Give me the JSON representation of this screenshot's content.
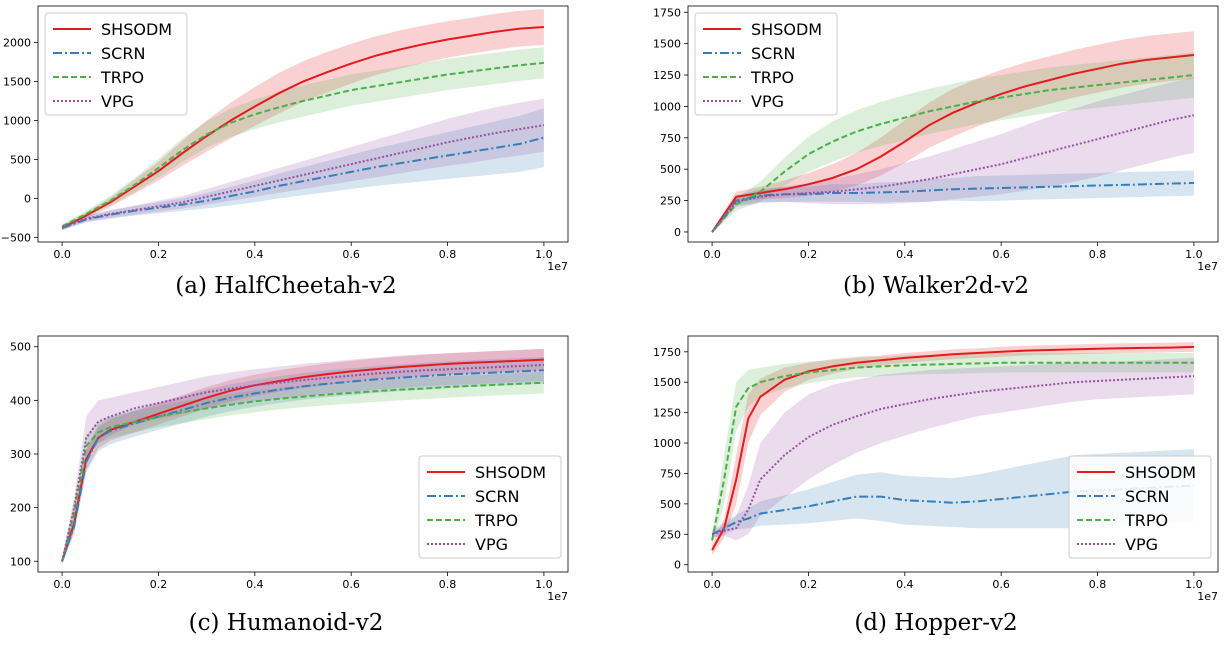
{
  "colors": {
    "SHSODM": "#e41a1c",
    "SCRN": "#377eb8",
    "TRPO": "#4daf4a",
    "VPG": "#984ea3"
  },
  "chart_data": [
    {
      "type": "line",
      "caption": "(a) HalfCheetah-v2",
      "x_exponent_label": "1e7",
      "xlim": [
        -0.05,
        1.05
      ],
      "ylim": [
        -560,
        2470
      ],
      "xticks": [
        0.0,
        0.2,
        0.4,
        0.6,
        0.8,
        1.0
      ],
      "xtick_labels": [
        "0.0",
        "0.2",
        "0.4",
        "0.6",
        "0.8",
        "1.0"
      ],
      "yticks": [
        -500,
        0,
        500,
        1000,
        1500,
        2000
      ],
      "ytick_labels": [
        "−500",
        "0",
        "500",
        "1000",
        "1500",
        "2000"
      ],
      "legend_position": "upper-left",
      "x": [
        0.0,
        0.05,
        0.1,
        0.15,
        0.2,
        0.25,
        0.3,
        0.35,
        0.4,
        0.45,
        0.5,
        0.55,
        0.6,
        0.65,
        0.7,
        0.75,
        0.8,
        0.85,
        0.9,
        0.95,
        1.0
      ],
      "series": [
        {
          "name": "SHSODM",
          "values": [
            -380,
            -220,
            -50,
            150,
            350,
            580,
            800,
            1000,
            1180,
            1350,
            1500,
            1620,
            1730,
            1830,
            1910,
            1980,
            2040,
            2090,
            2140,
            2180,
            2200
          ],
          "band": [
            30,
            40,
            60,
            90,
            120,
            160,
            200,
            230,
            250,
            260,
            260,
            260,
            255,
            250,
            245,
            240,
            235,
            230,
            230,
            230,
            230
          ]
        },
        {
          "name": "SCRN",
          "values": [
            -380,
            -270,
            -210,
            -160,
            -120,
            -80,
            -30,
            30,
            90,
            160,
            220,
            280,
            340,
            400,
            450,
            500,
            550,
            600,
            650,
            700,
            780
          ],
          "band": [
            30,
            40,
            50,
            60,
            70,
            80,
            100,
            120,
            140,
            160,
            180,
            200,
            220,
            240,
            260,
            280,
            300,
            320,
            340,
            360,
            380
          ]
        },
        {
          "name": "TRPO",
          "values": [
            -360,
            -200,
            -30,
            170,
            390,
            620,
            820,
            970,
            1080,
            1170,
            1250,
            1320,
            1390,
            1440,
            1490,
            1540,
            1590,
            1630,
            1670,
            1710,
            1740
          ],
          "band": [
            30,
            40,
            60,
            90,
            120,
            150,
            170,
            180,
            190,
            195,
            200,
            200,
            200,
            200,
            200,
            200,
            200,
            200,
            200,
            200,
            200
          ]
        },
        {
          "name": "VPG",
          "values": [
            -370,
            -260,
            -200,
            -150,
            -100,
            -50,
            20,
            90,
            160,
            230,
            300,
            370,
            440,
            510,
            580,
            650,
            720,
            780,
            840,
            890,
            940
          ],
          "band": [
            30,
            40,
            50,
            60,
            70,
            80,
            100,
            120,
            140,
            160,
            180,
            200,
            220,
            240,
            260,
            280,
            300,
            320,
            330,
            340,
            340
          ]
        }
      ]
    },
    {
      "type": "line",
      "caption": "(b) Walker2d-v2",
      "x_exponent_label": "1e7",
      "xlim": [
        -0.05,
        1.05
      ],
      "ylim": [
        -80,
        1800
      ],
      "xticks": [
        0.0,
        0.2,
        0.4,
        0.6,
        0.8,
        1.0
      ],
      "xtick_labels": [
        "0.0",
        "0.2",
        "0.4",
        "0.6",
        "0.8",
        "1.0"
      ],
      "yticks": [
        0,
        250,
        500,
        750,
        1000,
        1250,
        1500,
        1750
      ],
      "ytick_labels": [
        "0",
        "250",
        "500",
        "750",
        "1000",
        "1250",
        "1500",
        "1750"
      ],
      "legend_position": "upper-left",
      "x": [
        0.0,
        0.05,
        0.1,
        0.15,
        0.2,
        0.25,
        0.3,
        0.35,
        0.4,
        0.45,
        0.5,
        0.55,
        0.6,
        0.65,
        0.7,
        0.75,
        0.8,
        0.85,
        0.9,
        0.95,
        1.0
      ],
      "series": [
        {
          "name": "SHSODM",
          "values": [
            0,
            280,
            310,
            340,
            380,
            430,
            500,
            600,
            720,
            850,
            950,
            1030,
            1100,
            1160,
            1210,
            1260,
            1300,
            1340,
            1370,
            1390,
            1410
          ],
          "band": [
            10,
            40,
            50,
            70,
            90,
            110,
            130,
            150,
            170,
            180,
            190,
            190,
            190,
            190,
            190,
            190,
            190,
            190,
            190,
            190,
            190
          ]
        },
        {
          "name": "SCRN",
          "values": [
            0,
            250,
            290,
            300,
            300,
            310,
            310,
            315,
            320,
            330,
            340,
            345,
            350,
            355,
            360,
            365,
            370,
            375,
            380,
            385,
            390
          ],
          "band": [
            10,
            40,
            50,
            60,
            60,
            70,
            70,
            80,
            80,
            90,
            90,
            100,
            100,
            100,
            100,
            100,
            100,
            100,
            100,
            100,
            100
          ]
        },
        {
          "name": "TRPO",
          "values": [
            0,
            220,
            320,
            480,
            620,
            720,
            800,
            860,
            910,
            960,
            1000,
            1040,
            1070,
            1100,
            1130,
            1150,
            1170,
            1190,
            1210,
            1230,
            1250
          ],
          "band": [
            10,
            50,
            80,
            110,
            140,
            160,
            170,
            175,
            180,
            180,
            180,
            180,
            180,
            180,
            180,
            180,
            180,
            180,
            180,
            180,
            180
          ]
        },
        {
          "name": "VPG",
          "values": [
            0,
            240,
            280,
            300,
            310,
            320,
            340,
            360,
            390,
            420,
            460,
            500,
            540,
            590,
            640,
            690,
            740,
            790,
            840,
            890,
            930
          ],
          "band": [
            10,
            40,
            50,
            60,
            80,
            100,
            120,
            140,
            160,
            180,
            200,
            220,
            240,
            260,
            280,
            290,
            300,
            300,
            300,
            300,
            300
          ]
        }
      ]
    },
    {
      "type": "line",
      "caption": "(c) Humanoid-v2",
      "x_exponent_label": "1e7",
      "xlim": [
        -0.05,
        1.05
      ],
      "ylim": [
        80,
        520
      ],
      "xticks": [
        0.0,
        0.2,
        0.4,
        0.6,
        0.8,
        1.0
      ],
      "xtick_labels": [
        "0.0",
        "0.2",
        "0.4",
        "0.6",
        "0.8",
        "1.0"
      ],
      "yticks": [
        100,
        200,
        300,
        400,
        500
      ],
      "ytick_labels": [
        "100",
        "200",
        "300",
        "400",
        "500"
      ],
      "legend_position": "lower-right",
      "x": [
        0.0,
        0.025,
        0.05,
        0.075,
        0.1,
        0.15,
        0.2,
        0.25,
        0.3,
        0.35,
        0.4,
        0.45,
        0.5,
        0.55,
        0.6,
        0.65,
        0.7,
        0.75,
        0.8,
        0.85,
        0.9,
        0.95,
        1.0
      ],
      "series": [
        {
          "name": "SHSODM",
          "values": [
            100,
            170,
            290,
            330,
            345,
            360,
            375,
            390,
            405,
            418,
            428,
            436,
            443,
            449,
            454,
            458,
            462,
            465,
            468,
            470,
            472,
            474,
            476
          ],
          "band": [
            5,
            15,
            20,
            20,
            20,
            20,
            20,
            20,
            20,
            20,
            20,
            20,
            20,
            20,
            20,
            20,
            20,
            20,
            20,
            20,
            20,
            20,
            20
          ]
        },
        {
          "name": "SCRN",
          "values": [
            100,
            165,
            285,
            330,
            343,
            357,
            370,
            382,
            395,
            405,
            413,
            420,
            426,
            431,
            435,
            439,
            442,
            445,
            448,
            450,
            452,
            454,
            456
          ],
          "band": [
            5,
            15,
            20,
            25,
            25,
            25,
            25,
            25,
            25,
            25,
            25,
            25,
            25,
            25,
            25,
            25,
            25,
            25,
            25,
            25,
            25,
            25,
            25
          ]
        },
        {
          "name": "TRPO",
          "values": [
            100,
            190,
            315,
            340,
            350,
            360,
            370,
            378,
            385,
            392,
            398,
            403,
            407,
            411,
            414,
            417,
            420,
            422,
            425,
            427,
            429,
            431,
            433
          ],
          "band": [
            5,
            15,
            20,
            20,
            20,
            20,
            20,
            20,
            20,
            20,
            20,
            20,
            20,
            20,
            20,
            20,
            20,
            20,
            20,
            20,
            20,
            20,
            20
          ]
        },
        {
          "name": "VPG",
          "values": [
            100,
            200,
            330,
            360,
            370,
            385,
            395,
            405,
            415,
            422,
            428,
            433,
            438,
            442,
            446,
            450,
            453,
            456,
            458,
            460,
            462,
            464,
            466
          ],
          "band": [
            5,
            20,
            40,
            40,
            35,
            30,
            30,
            30,
            30,
            30,
            30,
            30,
            30,
            30,
            30,
            30,
            30,
            30,
            30,
            30,
            30,
            30,
            30
          ]
        }
      ]
    },
    {
      "type": "line",
      "caption": "(d) Hopper-v2",
      "x_exponent_label": "1e7",
      "xlim": [
        -0.05,
        1.05
      ],
      "ylim": [
        -60,
        1880
      ],
      "xticks": [
        0.0,
        0.2,
        0.4,
        0.6,
        0.8,
        1.0
      ],
      "xtick_labels": [
        "0.0",
        "0.2",
        "0.4",
        "0.6",
        "0.8",
        "1.0"
      ],
      "yticks": [
        0,
        250,
        500,
        750,
        1000,
        1250,
        1500,
        1750
      ],
      "ytick_labels": [
        "0",
        "250",
        "500",
        "750",
        "1000",
        "1250",
        "1500",
        "1750"
      ],
      "legend_position": "lower-right",
      "x": [
        0.0,
        0.025,
        0.05,
        0.075,
        0.1,
        0.15,
        0.2,
        0.25,
        0.3,
        0.35,
        0.4,
        0.45,
        0.5,
        0.55,
        0.6,
        0.65,
        0.7,
        0.75,
        0.8,
        0.85,
        0.9,
        0.95,
        1.0
      ],
      "series": [
        {
          "name": "SHSODM",
          "values": [
            120,
            300,
            700,
            1200,
            1380,
            1520,
            1590,
            1630,
            1660,
            1680,
            1700,
            1715,
            1730,
            1740,
            1750,
            1760,
            1765,
            1770,
            1775,
            1780,
            1782,
            1785,
            1790
          ],
          "band": [
            40,
            80,
            200,
            200,
            150,
            100,
            70,
            60,
            50,
            40,
            40,
            40,
            40,
            40,
            40,
            40,
            40,
            40,
            40,
            40,
            40,
            40,
            40
          ]
        },
        {
          "name": "SCRN",
          "values": [
            250,
            300,
            350,
            380,
            420,
            450,
            480,
            520,
            560,
            560,
            530,
            520,
            510,
            520,
            540,
            560,
            580,
            600,
            610,
            620,
            630,
            640,
            650
          ],
          "band": [
            30,
            50,
            60,
            80,
            100,
            120,
            140,
            160,
            180,
            200,
            200,
            200,
            200,
            220,
            240,
            260,
            280,
            300,
            300,
            300,
            300,
            300,
            300
          ]
        },
        {
          "name": "TRPO",
          "values": [
            200,
            700,
            1300,
            1450,
            1500,
            1550,
            1580,
            1600,
            1620,
            1630,
            1640,
            1645,
            1650,
            1655,
            1660,
            1660,
            1660,
            1660,
            1660,
            1660,
            1660,
            1660,
            1660
          ],
          "band": [
            40,
            200,
            200,
            150,
            120,
            100,
            90,
            80,
            80,
            80,
            80,
            80,
            80,
            80,
            80,
            80,
            80,
            80,
            80,
            80,
            80,
            80,
            80
          ]
        },
        {
          "name": "VPG",
          "values": [
            250,
            280,
            300,
            450,
            700,
            900,
            1050,
            1150,
            1220,
            1280,
            1320,
            1360,
            1390,
            1420,
            1440,
            1460,
            1480,
            1500,
            1510,
            1520,
            1530,
            1540,
            1550
          ],
          "band": [
            30,
            40,
            100,
            200,
            300,
            350,
            350,
            330,
            300,
            280,
            260,
            240,
            220,
            200,
            190,
            180,
            170,
            160,
            150,
            150,
            150,
            150,
            150
          ]
        }
      ]
    }
  ]
}
